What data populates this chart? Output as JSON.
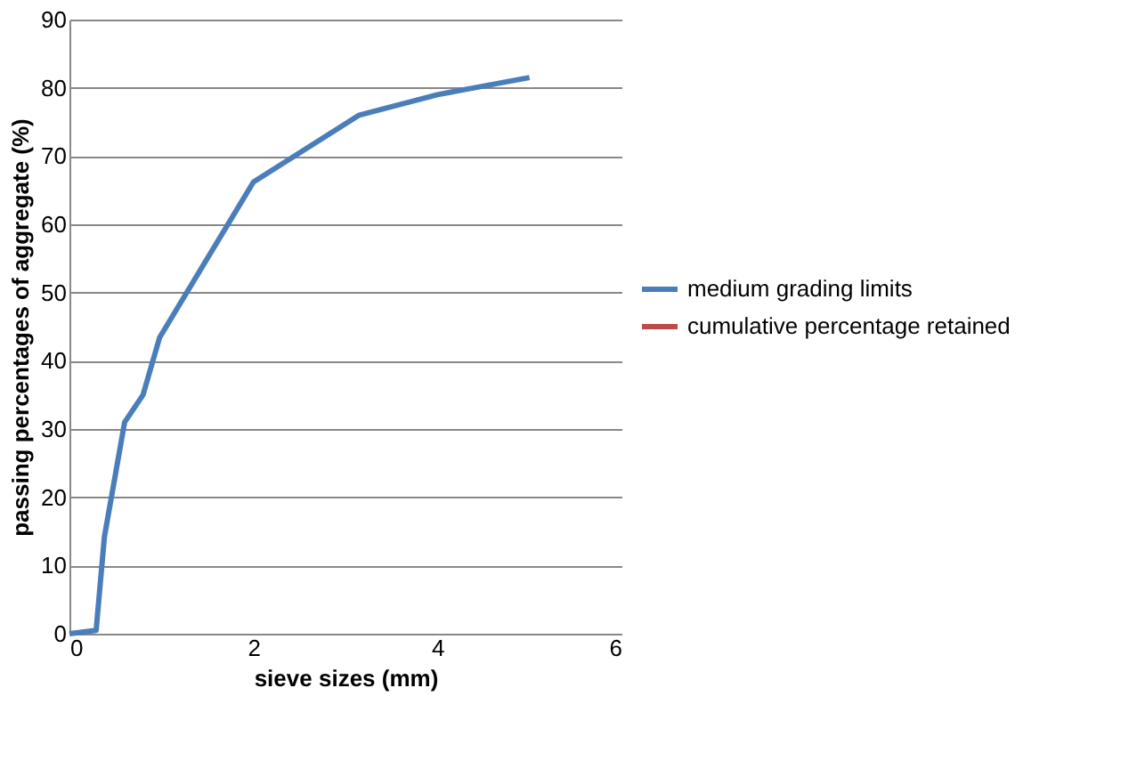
{
  "chart_data": {
    "type": "line",
    "xlabel": "sieve sizes (mm)",
    "ylabel": "passing percentages of aggregate (%)",
    "xlim": [
      0,
      6
    ],
    "xticks": [
      0,
      2,
      4,
      6
    ],
    "ylim": [
      0,
      90
    ],
    "yticks": [
      0,
      10,
      20,
      30,
      40,
      50,
      60,
      70,
      80,
      90
    ],
    "grid": "y",
    "legend": "right",
    "marker": "none",
    "line_style": "solid",
    "series": [
      {
        "name": "medium grading limits",
        "color": "#4a7ebb",
        "x": [
          0,
          0.29,
          0.38,
          0.6,
          0.8,
          0.98,
          2,
          3.15,
          4,
          5
        ],
        "values": [
          0,
          0.5,
          14.2,
          31,
          35,
          43.4,
          66.2,
          76,
          79,
          81.5
        ]
      },
      {
        "name": "cumulative percentage retained",
        "color": "#be4b48"
      }
    ]
  }
}
